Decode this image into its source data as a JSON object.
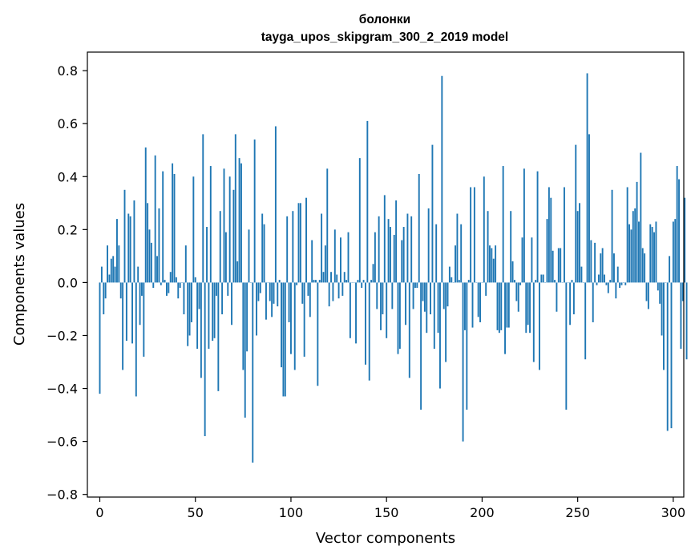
{
  "chart_data": {
    "type": "bar",
    "title": "болонки",
    "subtitle": "tayga_upos_skipgram_300_2_2019 model",
    "xlabel": "Vector components",
    "ylabel": "Components values",
    "xlim": [
      -6.5,
      305.5
    ],
    "ylim": [
      -0.81,
      0.87
    ],
    "xticks": [
      0,
      50,
      100,
      150,
      200,
      250,
      300
    ],
    "xtick_labels": [
      "0",
      "50",
      "100",
      "150",
      "200",
      "250",
      "300"
    ],
    "yticks": [
      -0.8,
      -0.6,
      -0.4,
      -0.2,
      0.0,
      0.2,
      0.4,
      0.6,
      0.8
    ],
    "ytick_labels": [
      "−0.8",
      "−0.6",
      "−0.4",
      "−0.2",
      "0.0",
      "0.2",
      "0.4",
      "0.6",
      "0.8"
    ],
    "grid": false,
    "bar_color": "#1f77b4",
    "values": [
      -0.42,
      0.06,
      -0.12,
      -0.06,
      0.14,
      0.03,
      0.09,
      0.1,
      0.06,
      0.24,
      0.14,
      -0.06,
      -0.33,
      0.35,
      -0.22,
      0.26,
      0.25,
      -0.23,
      0.31,
      -0.43,
      0.06,
      -0.16,
      -0.05,
      -0.28,
      0.51,
      0.3,
      0.2,
      0.15,
      -0.02,
      0.48,
      0.1,
      0.28,
      -0.01,
      0.42,
      0.01,
      -0.05,
      -0.04,
      0.04,
      0.45,
      0.41,
      0.02,
      -0.06,
      -0.02,
      0.0,
      -0.12,
      0.14,
      -0.24,
      -0.2,
      -0.15,
      0.4,
      0.02,
      -0.25,
      -0.1,
      -0.36,
      0.56,
      -0.58,
      0.21,
      -0.25,
      0.44,
      -0.22,
      -0.21,
      -0.05,
      -0.41,
      0.27,
      -0.12,
      0.43,
      0.19,
      -0.05,
      0.4,
      -0.16,
      0.35,
      0.56,
      0.08,
      0.47,
      0.45,
      -0.33,
      -0.51,
      -0.26,
      0.2,
      0.0,
      -0.68,
      0.54,
      -0.2,
      -0.07,
      -0.04,
      0.26,
      0.22,
      -0.14,
      0.0,
      -0.07,
      -0.13,
      -0.08,
      0.59,
      -0.09,
      0.01,
      -0.32,
      -0.43,
      -0.43,
      0.25,
      -0.15,
      -0.27,
      0.27,
      -0.33,
      -0.01,
      0.3,
      0.3,
      -0.08,
      -0.28,
      0.32,
      -0.05,
      -0.13,
      0.16,
      0.01,
      0.01,
      -0.39,
      0.01,
      0.26,
      0.04,
      0.14,
      0.43,
      -0.09,
      0.04,
      -0.07,
      0.2,
      0.03,
      -0.06,
      0.17,
      -0.05,
      0.04,
      0.01,
      0.19,
      -0.21,
      0.0,
      0.0,
      -0.23,
      0.01,
      0.47,
      -0.02,
      0.01,
      -0.31,
      0.61,
      -0.37,
      0.01,
      0.07,
      0.19,
      -0.1,
      0.25,
      -0.18,
      -0.12,
      0.33,
      -0.21,
      0.24,
      0.21,
      -0.1,
      0.18,
      0.31,
      -0.27,
      -0.25,
      0.16,
      0.21,
      -0.16,
      0.26,
      -0.36,
      0.25,
      -0.1,
      -0.02,
      -0.02,
      0.41,
      -0.48,
      -0.07,
      -0.11,
      -0.19,
      0.28,
      -0.12,
      0.52,
      -0.25,
      0.22,
      -0.19,
      -0.4,
      0.78,
      -0.1,
      -0.3,
      -0.09,
      0.06,
      0.02,
      0.0,
      0.14,
      0.26,
      0.01,
      0.22,
      -0.6,
      -0.18,
      -0.48,
      0.01,
      0.36,
      -0.17,
      0.36,
      0.0,
      -0.13,
      -0.15,
      0.0,
      0.4,
      -0.05,
      0.27,
      0.14,
      0.13,
      0.09,
      0.14,
      -0.18,
      -0.19,
      -0.18,
      0.44,
      -0.27,
      -0.17,
      -0.17,
      0.27,
      0.08,
      0.01,
      -0.07,
      -0.11,
      -0.01,
      0.17,
      0.43,
      -0.19,
      -0.16,
      -0.19,
      0.17,
      -0.3,
      0.01,
      0.42,
      -0.33,
      0.03,
      0.03,
      0.0,
      0.24,
      0.36,
      0.32,
      0.12,
      0.01,
      -0.11,
      0.13,
      0.13,
      0.0,
      0.36,
      -0.48,
      0.0,
      -0.16,
      0.01,
      -0.12,
      0.52,
      0.27,
      0.3,
      0.06,
      0.0,
      -0.29,
      0.79,
      0.56,
      0.16,
      -0.15,
      0.15,
      -0.01,
      0.03,
      0.11,
      0.13,
      0.03,
      -0.01,
      -0.04,
      0.01,
      0.35,
      0.11,
      -0.06,
      0.06,
      -0.02,
      -0.01,
      0.0,
      -0.01,
      0.36,
      0.22,
      0.2,
      0.27,
      0.28,
      0.38,
      0.23,
      0.49,
      0.13,
      0.11,
      -0.07,
      -0.1,
      0.22,
      0.21,
      0.19,
      0.23,
      -0.03,
      -0.08,
      -0.2,
      -0.33,
      0.0,
      -0.56,
      0.1,
      -0.55,
      0.23,
      0.24,
      0.44,
      0.39,
      -0.25,
      -0.07,
      0.32,
      -0.29
    ]
  }
}
